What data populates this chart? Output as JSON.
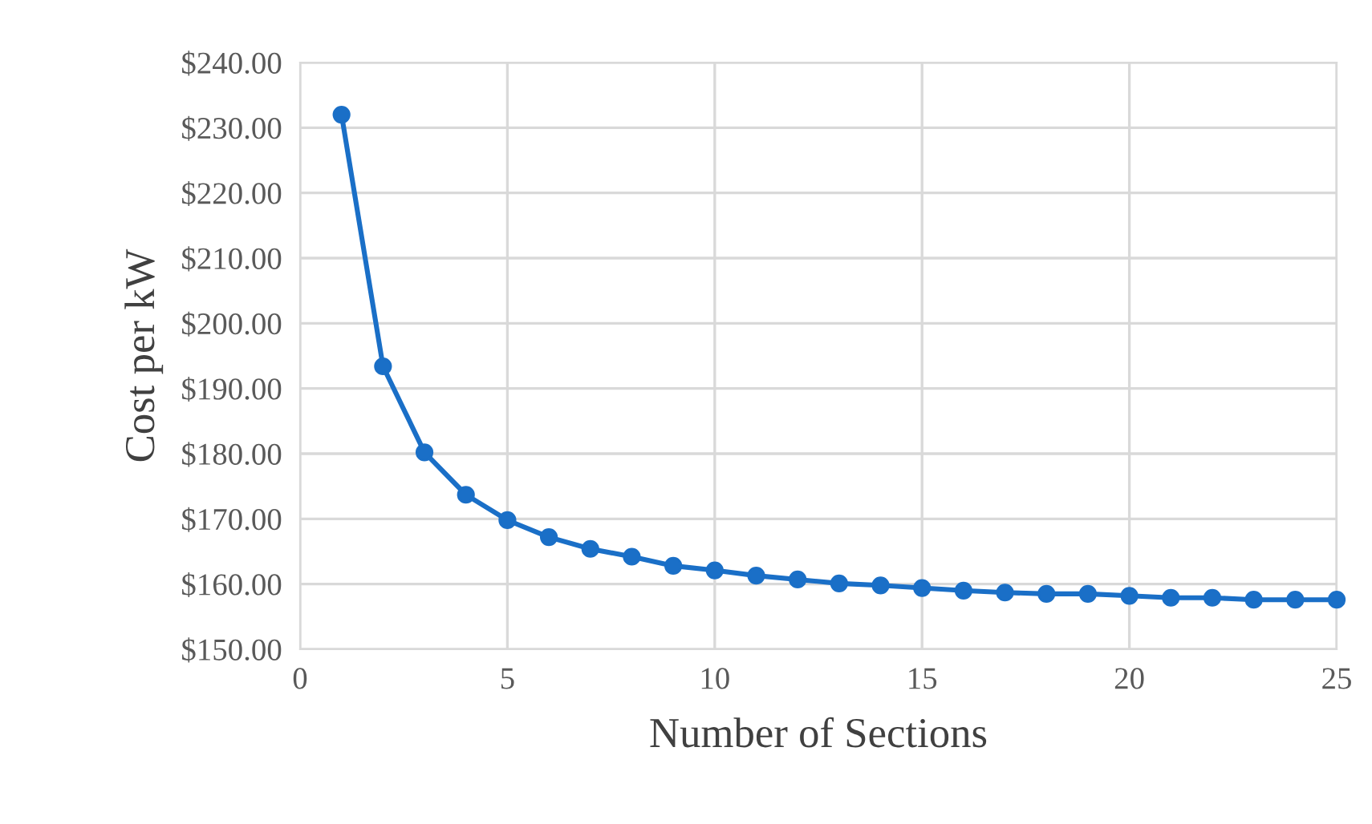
{
  "chart_data": {
    "type": "line",
    "xlabel": "Number of Sections",
    "ylabel": "Cost per kW",
    "x": [
      1,
      2,
      3,
      4,
      5,
      6,
      7,
      8,
      9,
      10,
      11,
      12,
      13,
      14,
      15,
      16,
      17,
      18,
      19,
      20,
      21,
      22,
      23,
      24,
      25
    ],
    "series": [
      {
        "color": "#1a6fc7",
        "values": [
          232.0,
          193.4,
          180.2,
          173.7,
          169.8,
          167.2,
          165.4,
          164.2,
          162.8,
          162.1,
          161.3,
          160.7,
          160.1,
          159.8,
          159.4,
          159.0,
          158.7,
          158.5,
          158.5,
          158.2,
          157.9,
          157.9,
          157.6,
          157.6,
          157.6
        ]
      }
    ],
    "xlim": [
      0,
      25
    ],
    "xticks": [
      0,
      5,
      10,
      15,
      20,
      25
    ],
    "ylim": [
      150,
      240
    ],
    "yticks": [
      {
        "value": 150,
        "label": "$150.00"
      },
      {
        "value": 160,
        "label": "$160.00"
      },
      {
        "value": 170,
        "label": "$170.00"
      },
      {
        "value": 180,
        "label": "$180.00"
      },
      {
        "value": 190,
        "label": "$190.00"
      },
      {
        "value": 200,
        "label": "$200.00"
      },
      {
        "value": 210,
        "label": "$210.00"
      },
      {
        "value": 220,
        "label": "$220.00"
      },
      {
        "value": 230,
        "label": "$230.00"
      },
      {
        "value": 240,
        "label": "$240.00"
      }
    ],
    "grid": true,
    "marker": "circle",
    "line_style": "solid"
  }
}
